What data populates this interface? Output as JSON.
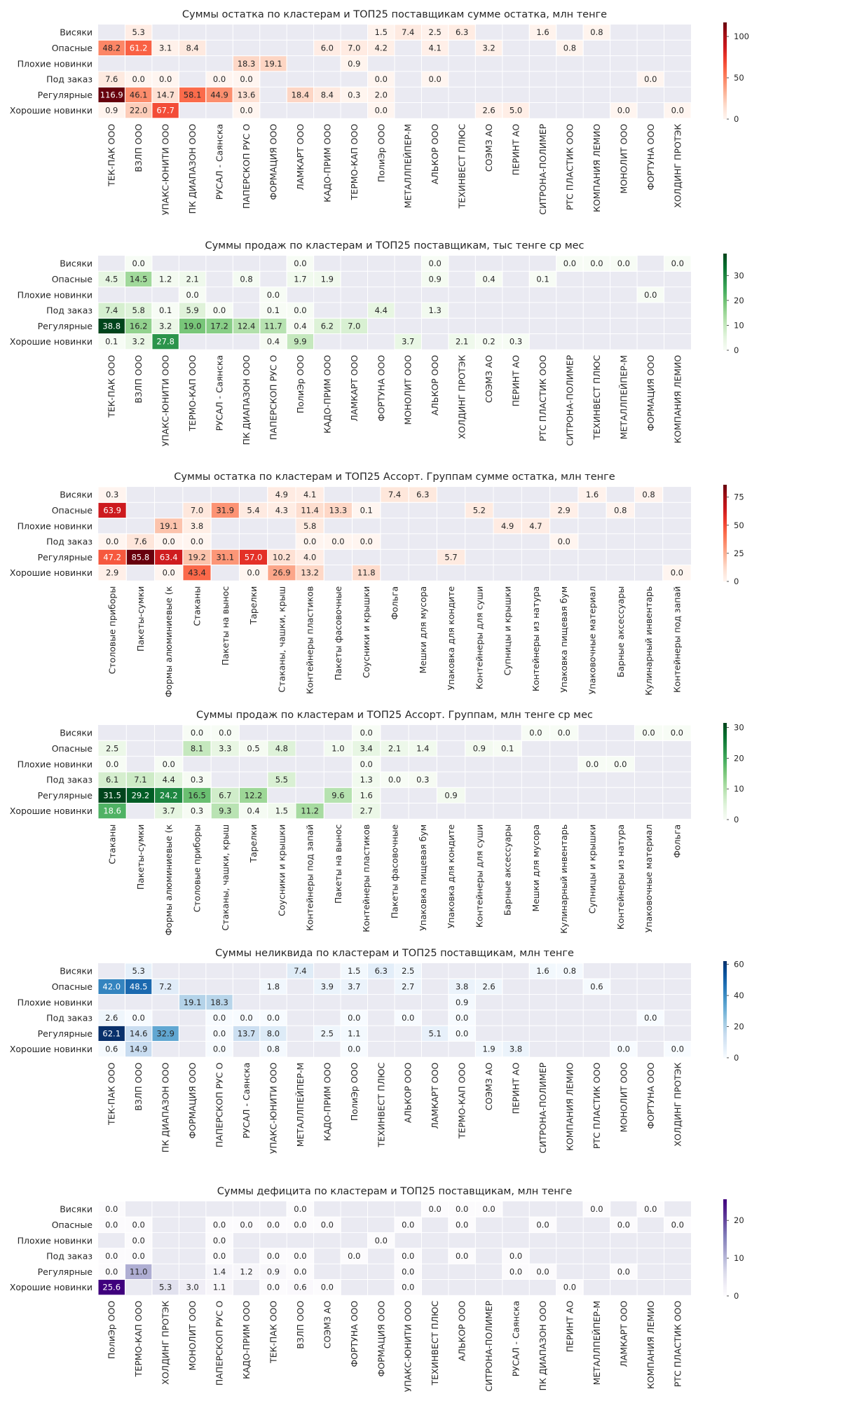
{
  "chart_data": [
    {
      "type": "heatmap",
      "title": "Суммы остатка по кластерам и ТОП25 поставщикам сумме остатка, млн тенге",
      "colormap": "Reds",
      "rows": [
        "Висяки",
        "Опасные",
        "Плохие новинки",
        "Под заказ",
        "Регулярные",
        "Хорошие новинки"
      ],
      "columns": [
        "ТЕК-ПАК ООО",
        "ВЗЛП ООО",
        "УПАКС-ЮНИТИ ООО",
        "ПК ДИАПАЗОН ООО",
        "РУСАЛ - Саянска",
        "ПАПЕРСКОП РУС О",
        "ФОРМАЦИЯ ООО",
        "ЛАМКАРТ ООО",
        "КАДО-ПРИМ ООО",
        "ТЕРМО-КАП ООО",
        "ПолиЭр ООО",
        "МЕТАЛЛПЕЙПЕР-М",
        "АЛЬКОР ООО",
        "ТЕХИНВЕСТ ПЛЮС",
        "СОЭМЗ АО",
        "ПЕРИНТ АО",
        "СИТРОНА-ПОЛИМЕР",
        "РТС ПЛАСТИК ООО",
        "КОМПАНИЯ ЛЕМИО",
        "МОНОЛИТ ООО",
        "ФОРТУНА ООО",
        "ХОЛДИНГ ПРОТЭК"
      ],
      "values": [
        [
          null,
          5.3,
          null,
          null,
          null,
          null,
          null,
          null,
          null,
          null,
          1.5,
          7.4,
          2.5,
          6.3,
          null,
          null,
          1.6,
          null,
          0.8,
          null,
          null,
          null
        ],
        [
          48.2,
          61.2,
          3.1,
          8.4,
          null,
          null,
          null,
          null,
          6.0,
          7.0,
          4.2,
          null,
          4.1,
          null,
          3.2,
          null,
          null,
          0.8,
          null,
          null,
          null,
          null
        ],
        [
          null,
          null,
          null,
          null,
          null,
          18.3,
          19.1,
          null,
          null,
          0.9,
          null,
          null,
          null,
          null,
          null,
          null,
          null,
          null,
          null,
          null,
          null,
          null
        ],
        [
          7.6,
          0.0,
          0.0,
          null,
          0.0,
          0.0,
          null,
          null,
          null,
          null,
          0.0,
          null,
          0.0,
          null,
          null,
          null,
          null,
          null,
          null,
          null,
          0.0,
          null
        ],
        [
          116.9,
          46.1,
          14.7,
          58.1,
          44.9,
          13.6,
          null,
          18.4,
          8.4,
          0.3,
          2.0,
          null,
          null,
          null,
          null,
          null,
          null,
          null,
          null,
          null,
          null,
          null
        ],
        [
          0.9,
          22.0,
          67.7,
          null,
          null,
          0.0,
          null,
          null,
          null,
          null,
          0.0,
          null,
          null,
          null,
          2.6,
          5.0,
          null,
          null,
          null,
          0.0,
          null,
          0.0
        ]
      ],
      "vmin": 0,
      "vmax": 117,
      "colorbar_ticks": [
        0,
        50,
        100
      ]
    },
    {
      "type": "heatmap",
      "title": "Суммы продаж по кластерам и ТОП25 поставщикам, тыс тенге ср мес",
      "colormap": "Greens",
      "rows": [
        "Висяки",
        "Опасные",
        "Плохие новинки",
        "Под заказ",
        "Регулярные",
        "Хорошие новинки"
      ],
      "columns": [
        "ТЕК-ПАК ООО",
        "ВЗЛП ООО",
        "УПАКС-ЮНИТИ ООО",
        "ТЕРМО-КАП ООО",
        "РУСАЛ - Саянска",
        "ПК ДИАПАЗОН ООО",
        "ПАПЕРСКОП РУС О",
        "ПолиЭр ООО",
        "КАДО-ПРИМ ООО",
        "ЛАМКАРТ ООО",
        "ФОРТУНА ООО",
        "МОНОЛИТ ООО",
        "АЛЬКОР ООО",
        "ХОЛДИНГ ПРОТЭК",
        "СОЭМЗ АО",
        "ПЕРИНТ АО",
        "РТС ПЛАСТИК ООО",
        "СИТРОНА-ПОЛИМЕР",
        "ТЕХИНВЕСТ ПЛЮС",
        "МЕТАЛЛПЕЙПЕР-М",
        "ФОРМАЦИЯ ООО",
        "КОМПАНИЯ ЛЕМИО"
      ],
      "values": [
        [
          null,
          0.0,
          null,
          null,
          null,
          null,
          null,
          0.0,
          null,
          null,
          null,
          null,
          0.0,
          null,
          null,
          null,
          null,
          0.0,
          0.0,
          0.0,
          null,
          0.0
        ],
        [
          4.5,
          14.5,
          1.2,
          2.1,
          null,
          0.8,
          null,
          1.7,
          1.9,
          null,
          null,
          null,
          0.9,
          null,
          0.4,
          null,
          0.1,
          null,
          null,
          null,
          null,
          null
        ],
        [
          null,
          null,
          null,
          0.0,
          null,
          null,
          0.0,
          null,
          null,
          null,
          null,
          null,
          null,
          null,
          null,
          null,
          null,
          null,
          null,
          null,
          0.0,
          null
        ],
        [
          7.4,
          5.8,
          0.1,
          5.9,
          0.0,
          null,
          0.1,
          0.0,
          null,
          null,
          4.4,
          null,
          1.3,
          null,
          null,
          null,
          null,
          null,
          null,
          null,
          null,
          null
        ],
        [
          38.8,
          16.2,
          3.2,
          19.0,
          17.2,
          12.4,
          11.7,
          0.4,
          6.2,
          7.0,
          null,
          null,
          null,
          null,
          null,
          null,
          null,
          null,
          null,
          null,
          null,
          null
        ],
        [
          0.1,
          3.2,
          27.8,
          null,
          null,
          null,
          0.4,
          9.9,
          null,
          null,
          null,
          3.7,
          null,
          2.1,
          0.2,
          0.3,
          null,
          null,
          null,
          null,
          null,
          null
        ]
      ],
      "vmin": 0,
      "vmax": 38.8,
      "colorbar_ticks": [
        0,
        10,
        20,
        30
      ]
    },
    {
      "type": "heatmap",
      "title": "Суммы остатка по кластерам и ТОП25 Ассорт. Группам сумме остатка, млн тенге",
      "colormap": "Reds",
      "rows": [
        "Висяки",
        "Опасные",
        "Плохие новинки",
        "Под заказ",
        "Регулярные",
        "Хорошие новинки"
      ],
      "columns": [
        "Столовые приборы",
        "Пакеты-сумки",
        "Формы алюминиевые (к",
        "Стаканы",
        "Пакеты на вынос",
        "Тарелки",
        "Стаканы, чашки, крыш",
        "Контейнеры пластиков",
        "Пакеты фасовочные",
        "Соусники и крышки",
        "Фольга",
        "Мешки для мусора",
        "Упаковка для кондите",
        "Контейнеры для суши",
        "Супницы и крышки",
        "Контейнеры из натура",
        "Упаковка пищевая бум",
        "Упаковочные материал",
        "Барные аксессуары",
        "Кулинарный инвентарь",
        "Контейнеры под запай"
      ],
      "values": [
        [
          0.3,
          null,
          null,
          null,
          null,
          null,
          4.9,
          4.1,
          null,
          null,
          7.4,
          6.3,
          null,
          null,
          null,
          null,
          null,
          1.6,
          null,
          0.8,
          null
        ],
        [
          63.9,
          null,
          null,
          7.0,
          31.9,
          5.4,
          4.3,
          11.4,
          13.3,
          0.1,
          null,
          null,
          null,
          5.2,
          null,
          null,
          2.9,
          null,
          0.8,
          null,
          null
        ],
        [
          null,
          null,
          19.1,
          3.8,
          null,
          null,
          null,
          5.8,
          null,
          null,
          null,
          null,
          null,
          null,
          4.9,
          4.7,
          null,
          null,
          null,
          null,
          null
        ],
        [
          0.0,
          7.6,
          0.0,
          0.0,
          null,
          null,
          null,
          0.0,
          0.0,
          0.0,
          null,
          null,
          null,
          null,
          null,
          null,
          0.0,
          null,
          null,
          null,
          null
        ],
        [
          47.2,
          85.8,
          63.4,
          19.2,
          31.1,
          57.0,
          10.2,
          4.0,
          null,
          null,
          null,
          null,
          5.7,
          null,
          null,
          null,
          null,
          null,
          null,
          null,
          null
        ],
        [
          2.9,
          null,
          0.0,
          43.4,
          null,
          0.0,
          26.9,
          13.2,
          null,
          11.8,
          null,
          null,
          null,
          null,
          null,
          null,
          null,
          null,
          null,
          null,
          0.0
        ]
      ],
      "vmin": 0,
      "vmax": 86,
      "colorbar_ticks": [
        0,
        25,
        50,
        75
      ]
    },
    {
      "type": "heatmap",
      "title": "Суммы продаж по кластерам и ТОП25 Ассорт. Группам, млн тенге ср мес",
      "colormap": "Greens",
      "rows": [
        "Висяки",
        "Опасные",
        "Плохие новинки",
        "Под заказ",
        "Регулярные",
        "Хорошие новинки"
      ],
      "columns": [
        "Стаканы",
        "Пакеты-сумки",
        "Формы алюминиевые (к",
        "Столовые приборы",
        "Стаканы, чашки, крыш",
        "Тарелки",
        "Соусники и крышки",
        "Контейнеры под запай",
        "Пакеты на вынос",
        "Контейнеры пластиков",
        "Пакеты фасовочные",
        "Упаковка пищевая бум",
        "Упаковка для кондите",
        "Контейнеры для суши",
        "Барные аксессуары",
        "Мешки для мусора",
        "Кулинарный инвентарь",
        "Супницы и крышки",
        "Контейнеры из натура",
        "Упаковочные материал",
        "Фольга"
      ],
      "values": [
        [
          null,
          null,
          null,
          0.0,
          0.0,
          null,
          null,
          null,
          null,
          0.0,
          null,
          null,
          null,
          null,
          null,
          0.0,
          0.0,
          null,
          null,
          0.0,
          0.0
        ],
        [
          2.5,
          null,
          null,
          8.1,
          3.3,
          0.5,
          4.8,
          null,
          1.0,
          3.4,
          2.1,
          1.4,
          null,
          0.9,
          0.1,
          null,
          null,
          null,
          null,
          null,
          null
        ],
        [
          0.0,
          null,
          0.0,
          null,
          null,
          null,
          null,
          null,
          null,
          0.0,
          null,
          null,
          null,
          null,
          null,
          null,
          null,
          0.0,
          0.0,
          null,
          null
        ],
        [
          6.1,
          7.1,
          4.4,
          0.3,
          null,
          null,
          5.5,
          null,
          null,
          1.3,
          0.0,
          0.3,
          null,
          null,
          null,
          null,
          null,
          null,
          null,
          null,
          null
        ],
        [
          31.5,
          29.2,
          24.2,
          16.5,
          6.7,
          12.2,
          null,
          null,
          9.6,
          1.6,
          null,
          null,
          0.9,
          null,
          null,
          null,
          null,
          null,
          null,
          null,
          null
        ],
        [
          18.6,
          null,
          3.7,
          0.3,
          9.3,
          0.4,
          1.5,
          11.2,
          null,
          2.7,
          null,
          null,
          null,
          null,
          null,
          null,
          null,
          null,
          null,
          null,
          null
        ]
      ],
      "vmin": 0,
      "vmax": 31.5,
      "colorbar_ticks": [
        0,
        10,
        20,
        30
      ]
    },
    {
      "type": "heatmap",
      "title": "Суммы неликвида по кластерам и ТОП25 поставщикам, млн тенге",
      "colormap": "Blues",
      "rows": [
        "Висяки",
        "Опасные",
        "Плохие новинки",
        "Под заказ",
        "Регулярные",
        "Хорошие новинки"
      ],
      "columns": [
        "ТЕК-ПАК ООО",
        "ВЗЛП ООО",
        "ПК ДИАПАЗОН ООО",
        "ФОРМАЦИЯ ООО",
        "ПАПЕРСКОП РУС О",
        "РУСАЛ - Саянска",
        "УПАКС-ЮНИТИ ООО",
        "МЕТАЛЛПЕЙПЕР-М",
        "КАДО-ПРИМ ООО",
        "ПолиЭр ООО",
        "ТЕХИНВЕСТ ПЛЮС",
        "АЛЬКОР ООО",
        "ЛАМКАРТ ООО",
        "ТЕРМО-КАП ООО",
        "СОЭМЗ АО",
        "ПЕРИНТ АО",
        "СИТРОНА-ПОЛИМЕР",
        "КОМПАНИЯ ЛЕМИО",
        "РТС ПЛАСТИК ООО",
        "МОНОЛИТ ООО",
        "ФОРТУНА ООО",
        "ХОЛДИНГ ПРОТЭК"
      ],
      "values": [
        [
          null,
          5.3,
          null,
          null,
          null,
          null,
          null,
          7.4,
          null,
          1.5,
          6.3,
          2.5,
          null,
          null,
          null,
          null,
          1.6,
          0.8,
          null,
          null,
          null,
          null
        ],
        [
          42.0,
          48.5,
          7.2,
          null,
          null,
          null,
          1.8,
          null,
          3.9,
          3.7,
          null,
          2.7,
          null,
          3.8,
          2.6,
          null,
          null,
          null,
          0.6,
          null,
          null,
          null
        ],
        [
          null,
          null,
          null,
          19.1,
          18.3,
          null,
          null,
          null,
          null,
          null,
          null,
          null,
          null,
          0.9,
          null,
          null,
          null,
          null,
          null,
          null,
          null,
          null
        ],
        [
          2.6,
          0.0,
          null,
          null,
          0.0,
          0.0,
          0.0,
          null,
          null,
          0.0,
          null,
          0.0,
          null,
          0.0,
          null,
          null,
          null,
          null,
          null,
          null,
          0.0,
          null
        ],
        [
          62.1,
          14.6,
          32.9,
          null,
          0.0,
          13.7,
          8.0,
          null,
          2.5,
          1.1,
          null,
          null,
          5.1,
          0.0,
          null,
          null,
          null,
          null,
          null,
          null,
          null,
          null
        ],
        [
          0.6,
          14.9,
          null,
          null,
          0.0,
          null,
          0.8,
          null,
          null,
          0.0,
          null,
          null,
          null,
          null,
          1.9,
          3.8,
          null,
          null,
          null,
          0.0,
          null,
          0.0
        ]
      ],
      "vmin": 0,
      "vmax": 62.1,
      "colorbar_ticks": [
        0,
        20,
        40,
        60
      ]
    },
    {
      "type": "heatmap",
      "title": "Суммы дефицита по кластерам и ТОП25 поставщикам, млн тенге",
      "colormap": "Purples",
      "rows": [
        "Висяки",
        "Опасные",
        "Плохие новинки",
        "Под заказ",
        "Регулярные",
        "Хорошие новинки"
      ],
      "columns": [
        "ПолиЭр ООО",
        "ТЕРМО-КАП ООО",
        "ХОЛДИНГ ПРОТЭК",
        "МОНОЛИТ ООО",
        "ПАПЕРСКОП РУС О",
        "КАДО-ПРИМ ООО",
        "ТЕК-ПАК ООО",
        "ВЗЛП ООО",
        "СОЭМЗ АО",
        "ФОРТУНА ООО",
        "ФОРМАЦИЯ ООО",
        "УПАКС-ЮНИТИ ООО",
        "ТЕХИНВЕСТ ПЛЮС",
        "АЛЬКОР ООО",
        "СИТРОНА-ПОЛИМЕР",
        "РУСАЛ - Саянска",
        "ПК ДИАПАЗОН ООО",
        "ПЕРИНТ АО",
        "МЕТАЛЛПЕЙПЕР-М",
        "ЛАМКАРТ ООО",
        "КОМПАНИЯ ЛЕМИО",
        "РТС ПЛАСТИК ООО"
      ],
      "values": [
        [
          0.0,
          null,
          null,
          null,
          null,
          null,
          null,
          0.0,
          null,
          null,
          null,
          null,
          0.0,
          0.0,
          0.0,
          null,
          null,
          null,
          0.0,
          null,
          0.0,
          null
        ],
        [
          0.0,
          0.0,
          null,
          null,
          0.0,
          0.0,
          0.0,
          0.0,
          0.0,
          null,
          null,
          0.0,
          null,
          0.0,
          null,
          null,
          0.0,
          null,
          null,
          0.0,
          null,
          0.0
        ],
        [
          null,
          0.0,
          null,
          null,
          0.0,
          null,
          null,
          null,
          null,
          null,
          0.0,
          null,
          null,
          null,
          null,
          null,
          null,
          null,
          null,
          null,
          null,
          null
        ],
        [
          0.0,
          0.0,
          null,
          null,
          0.0,
          null,
          0.0,
          0.0,
          null,
          0.0,
          null,
          0.0,
          null,
          0.0,
          null,
          0.0,
          null,
          null,
          null,
          null,
          null,
          null
        ],
        [
          0.0,
          11.0,
          null,
          null,
          1.4,
          1.2,
          0.9,
          0.0,
          null,
          null,
          null,
          0.0,
          null,
          null,
          null,
          0.0,
          0.0,
          null,
          null,
          0.0,
          null,
          null
        ],
        [
          25.6,
          null,
          5.3,
          3.0,
          1.1,
          null,
          0.0,
          0.6,
          0.0,
          null,
          null,
          0.0,
          null,
          null,
          null,
          null,
          null,
          0.0,
          null,
          null,
          null,
          null
        ]
      ],
      "vmin": 0,
      "vmax": 25.6,
      "colorbar_ticks": [
        0,
        10,
        20
      ]
    }
  ]
}
